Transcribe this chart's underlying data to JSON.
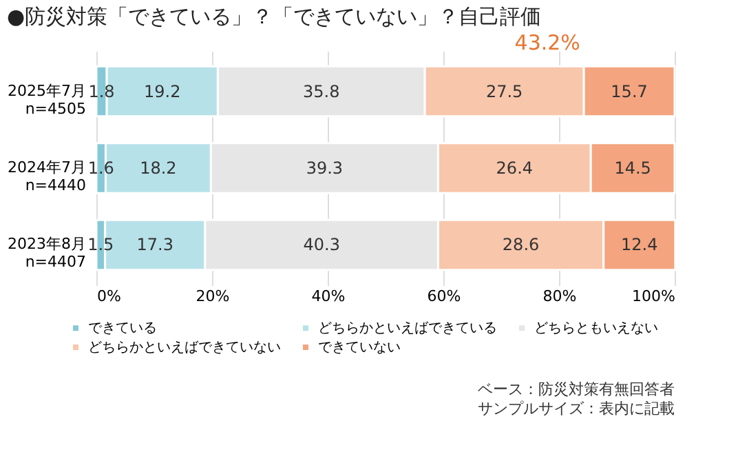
{
  "chart_data": {
    "type": "bar",
    "orientation": "horizontal",
    "stacked": true,
    "title": "●防災対策「できている」？「できていない」？自己評価",
    "categories": [
      "2025年7月\nn=4505",
      "2024年7月\nn=4440",
      "2023年8月\nn=4407"
    ],
    "series": [
      {
        "name": "できている",
        "color": "#86c9d6",
        "values": [
          1.8,
          1.6,
          1.5
        ]
      },
      {
        "name": "どちらかといえばできている",
        "color": "#b7e1e9",
        "values": [
          19.2,
          18.2,
          17.3
        ]
      },
      {
        "name": "どちらともいえない",
        "color": "#e6e6e6",
        "values": [
          35.8,
          39.3,
          40.3
        ]
      },
      {
        "name": "どちらかといえばできていない",
        "color": "#f8c6ab",
        "values": [
          27.5,
          26.4,
          28.6
        ]
      },
      {
        "name": "できていない",
        "color": "#f4a47e",
        "values": [
          15.7,
          14.5,
          12.4
        ]
      }
    ],
    "xlim": [
      0,
      100
    ],
    "xticks": [
      {
        "value": 0,
        "label": "0%"
      },
      {
        "value": 20,
        "label": "20%"
      },
      {
        "value": 40,
        "label": "40%"
      },
      {
        "value": 60,
        "label": "60%"
      },
      {
        "value": 80,
        "label": "80%"
      },
      {
        "value": 100,
        "label": "100%"
      }
    ],
    "grid": "x",
    "legend": "bottom",
    "data_labels": true,
    "annotations": [
      "43.2%",
      "ベース：防災対策有無回答者",
      "サンプルサイズ：表内に記載"
    ]
  }
}
